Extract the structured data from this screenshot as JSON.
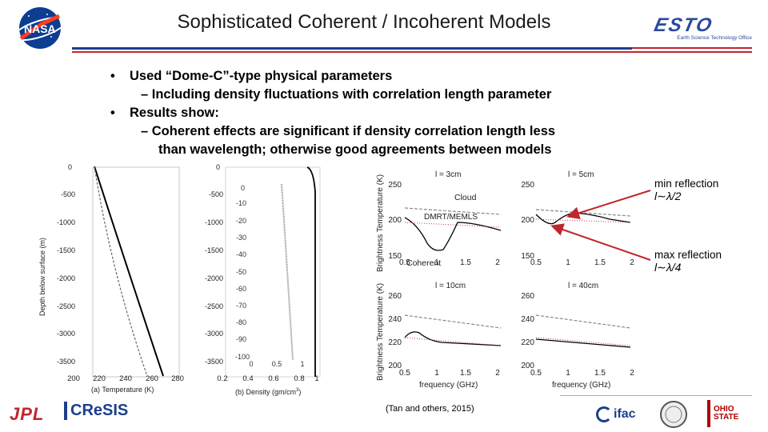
{
  "slide": {
    "title": "Sophisticated Coherent / Incoherent Models",
    "bullets": [
      {
        "level": 1,
        "marker": "•",
        "text": "Used “Dome-C”-type physical parameters"
      },
      {
        "level": 2,
        "text": "– Including density fluctuations with correlation length parameter"
      },
      {
        "level": 1,
        "marker": "•",
        "text": "Results show:"
      },
      {
        "level": 2,
        "text": "– Coherent effects are significant if density correlation length less"
      },
      {
        "level": 3,
        "text": "than wavelength; otherwise good agreements between models"
      }
    ],
    "citation": "(Tan and others, 2015)",
    "brand_color": "#1c3f8c",
    "accent_color": "#c0262d"
  },
  "logos": {
    "esto": {
      "wordmark": "ESTO",
      "subtitle": "Earth Science Technology Office"
    },
    "jpl": {
      "wordmark": "JPL"
    },
    "cresis": {
      "wordmark": "CReSIS"
    },
    "ifac": {
      "wordmark": "ifac"
    },
    "osu": {
      "wordmark": "OHIO STATE"
    },
    "nasa": {
      "icon": "nasa-meatball-icon"
    }
  },
  "profile_plots": {
    "temperature": {
      "xlabel": "(a) Temperature (K)",
      "ylabel": "Depth below surface (m)",
      "xticks": [
        "200",
        "220",
        "240",
        "260",
        "280"
      ],
      "yticks": [
        "0",
        "-500",
        "-1000",
        "-1500",
        "-2000",
        "-2500",
        "-3000",
        "-3500"
      ]
    },
    "density": {
      "xlabel": "(b) Density (gm/cm",
      "xlabel_sup": "3",
      "xlabel_end": ")",
      "xticks": [
        "0.2",
        "0.4",
        "0.6",
        "0.8",
        "1"
      ],
      "yticks": [
        "0",
        "-500",
        "-1000",
        "-1500",
        "-2000",
        "-2500",
        "-3000",
        "-3500"
      ],
      "inset_yticks": [
        "0",
        "-10",
        "-20",
        "-30",
        "-40",
        "-50",
        "-60",
        "-70",
        "-80",
        "-90",
        "-100"
      ],
      "inset_xticks": [
        "0",
        "0.5",
        "1"
      ]
    }
  },
  "tb_plots": {
    "ylabel": "Brightness Temperature (K)",
    "xlabel": "frequency (GHz)",
    "panels": [
      {
        "title": "l = 3cm",
        "yticks": [
          "250",
          "200",
          "150"
        ],
        "xticks": [
          "0.5",
          "1",
          "1.5",
          "2"
        ]
      },
      {
        "title": "l = 5cm",
        "yticks": [
          "250",
          "200",
          "150"
        ],
        "xticks": [
          "0.5",
          "1",
          "1.5",
          "2"
        ]
      },
      {
        "title": "l = 10cm",
        "yticks": [
          "260",
          "240",
          "220",
          "200"
        ],
        "xticks": [
          "0.5",
          "1",
          "1.5",
          "2"
        ]
      },
      {
        "title": "l = 40cm",
        "yticks": [
          "260",
          "240",
          "220",
          "200"
        ],
        "xticks": [
          "0.5",
          "1",
          "1.5",
          "2"
        ]
      }
    ],
    "legend_labels": {
      "cloud": "Cloud",
      "dmrt": "DMRT/MEMLS",
      "coherent": "Coherent"
    },
    "annotations": [
      {
        "title": "min reflection",
        "formula": "l∼λ/2"
      },
      {
        "title": "max reflection",
        "formula": "l∼λ/4"
      }
    ]
  }
}
